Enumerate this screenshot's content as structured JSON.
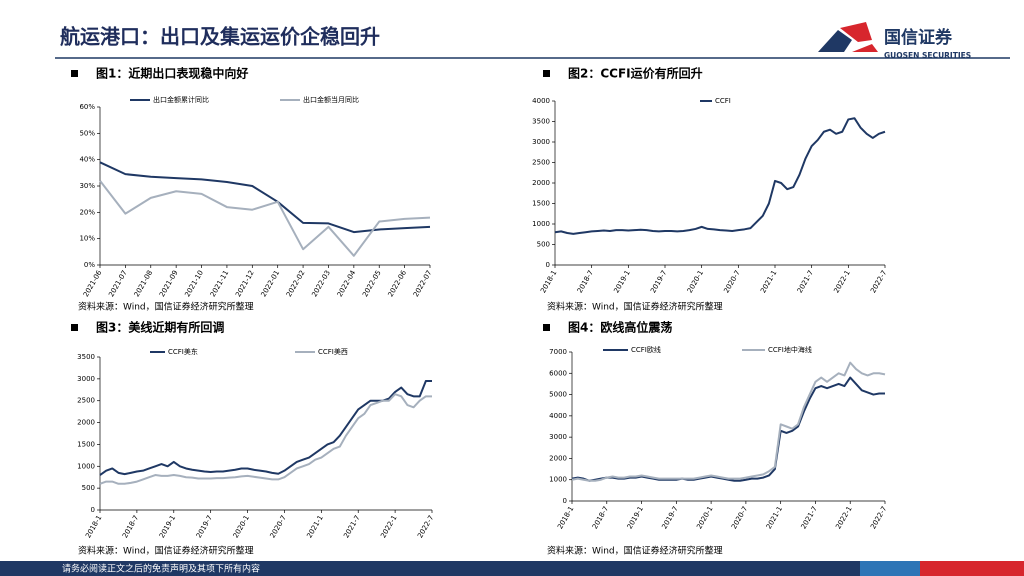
{
  "header": {
    "title": "航运港口：出口及集运运价企稳回升",
    "logo_cn": "国信证券",
    "logo_en": "GUOSEN SECURITIES"
  },
  "footer": {
    "text": "请务必阅读正文之后的免责声明及其项下所有内容"
  },
  "chart_data": [
    {
      "type": "line",
      "title": "图1：近期出口表现稳中向好",
      "source": "资料来源：Wind，国信证券经济研究所整理",
      "categories": [
        "2021-06",
        "2021-07",
        "2021-08",
        "2021-09",
        "2021-10",
        "2021-11",
        "2021-12",
        "2022-01",
        "2022-02",
        "2022-03",
        "2022-04",
        "2022-05",
        "2022-06",
        "2022-07"
      ],
      "series": [
        {
          "name": "出口金额累计同比",
          "color": "#1f3864",
          "values": [
            39,
            34.5,
            33.5,
            33,
            32.5,
            31.5,
            30,
            24,
            16,
            15.8,
            12.5,
            13.5,
            14,
            14.5
          ]
        },
        {
          "name": "出口金额当月同比",
          "color": "#a6b0bd",
          "values": [
            32,
            19.5,
            25.5,
            28,
            27,
            22,
            21,
            24,
            6,
            14.5,
            3.5,
            16.5,
            17.5,
            18
          ]
        }
      ],
      "ylim": [
        0,
        60
      ],
      "yticks": [
        {
          "value": 0,
          "label": "0%"
        },
        {
          "value": 10,
          "label": "10%"
        },
        {
          "value": 20,
          "label": "20%"
        },
        {
          "value": 30,
          "label": "30%"
        },
        {
          "value": 40,
          "label": "40%"
        },
        {
          "value": 50,
          "label": "50%"
        },
        {
          "value": 60,
          "label": "60%"
        }
      ]
    },
    {
      "type": "line",
      "title": "图2：CCFI运价有所回升",
      "source": "资料来源：Wind，国信证券经济研究所整理",
      "categories": [
        "2018-1",
        null,
        null,
        null,
        null,
        null,
        "2018-7",
        null,
        null,
        null,
        null,
        null,
        "2019-1",
        null,
        null,
        null,
        null,
        null,
        "2019-7",
        null,
        null,
        null,
        null,
        null,
        "2020-1",
        null,
        null,
        null,
        null,
        null,
        "2020-7",
        null,
        null,
        null,
        null,
        null,
        "2021-1",
        null,
        null,
        null,
        null,
        null,
        "2021-7",
        null,
        null,
        null,
        null,
        null,
        "2022-1",
        null,
        null,
        null,
        null,
        null,
        "2022-7"
      ],
      "series": [
        {
          "name": "CCFI",
          "color": "#1f3864",
          "values": [
            800,
            820,
            780,
            760,
            780,
            800,
            820,
            830,
            840,
            830,
            850,
            850,
            840,
            850,
            860,
            850,
            830,
            820,
            830,
            830,
            820,
            830,
            850,
            880,
            930,
            880,
            870,
            850,
            840,
            830,
            850,
            870,
            900,
            1050,
            1200,
            1500,
            2050,
            2000,
            1850,
            1900,
            2200,
            2600,
            2900,
            3050,
            3250,
            3300,
            3200,
            3250,
            3550,
            3580,
            3350,
            3200,
            3100,
            3200,
            3250
          ]
        }
      ],
      "ylim": [
        0,
        4000
      ],
      "yticks": [
        0,
        500,
        1000,
        1500,
        2000,
        2500,
        3000,
        3500,
        4000
      ]
    },
    {
      "type": "line",
      "title": "图3：美线近期有所回调",
      "source": "资料来源：Wind，国信证券经济研究所整理",
      "categories": [
        "2018-1",
        null,
        null,
        null,
        null,
        null,
        "2018-7",
        null,
        null,
        null,
        null,
        null,
        "2019-1",
        null,
        null,
        null,
        null,
        null,
        "2019-7",
        null,
        null,
        null,
        null,
        null,
        "2020-1",
        null,
        null,
        null,
        null,
        null,
        "2020-7",
        null,
        null,
        null,
        null,
        null,
        "2021-1",
        null,
        null,
        null,
        null,
        null,
        "2021-7",
        null,
        null,
        null,
        null,
        null,
        "2022-1",
        null,
        null,
        null,
        null,
        null,
        "2022-7"
      ],
      "series": [
        {
          "name": "CCFI美东",
          "color": "#1f3864",
          "values": [
            800,
            900,
            950,
            850,
            820,
            850,
            880,
            900,
            950,
            1000,
            1050,
            1000,
            1100,
            1000,
            950,
            920,
            900,
            880,
            870,
            880,
            880,
            900,
            920,
            950,
            950,
            920,
            900,
            880,
            850,
            830,
            900,
            1000,
            1100,
            1150,
            1200,
            1300,
            1400,
            1500,
            1550,
            1700,
            1900,
            2100,
            2300,
            2400,
            2500,
            2500,
            2500,
            2550,
            2700,
            2800,
            2650,
            2600,
            2600,
            2950,
            2950
          ]
        },
        {
          "name": "CCFI美西",
          "color": "#a6b0bd",
          "values": [
            600,
            650,
            650,
            600,
            600,
            620,
            650,
            700,
            750,
            800,
            780,
            780,
            800,
            780,
            750,
            740,
            720,
            720,
            720,
            730,
            730,
            740,
            750,
            770,
            780,
            760,
            740,
            720,
            700,
            700,
            750,
            850,
            950,
            1000,
            1050,
            1150,
            1200,
            1300,
            1400,
            1450,
            1700,
            1900,
            2100,
            2200,
            2400,
            2450,
            2500,
            2500,
            2650,
            2600,
            2400,
            2350,
            2500,
            2600,
            2600
          ]
        }
      ],
      "ylim": [
        0,
        3500
      ],
      "yticks": [
        0,
        500,
        1000,
        1500,
        2000,
        2500,
        3000,
        3500
      ]
    },
    {
      "type": "line",
      "title": "图4：欧线高位震荡",
      "source": "资料来源：Wind，国信证券经济研究所整理",
      "categories": [
        "2018-1",
        null,
        null,
        null,
        null,
        null,
        "2018-7",
        null,
        null,
        null,
        null,
        null,
        "2019-1",
        null,
        null,
        null,
        null,
        null,
        "2019-7",
        null,
        null,
        null,
        null,
        null,
        "2020-1",
        null,
        null,
        null,
        null,
        null,
        "2020-7",
        null,
        null,
        null,
        null,
        null,
        "2021-1",
        null,
        null,
        null,
        null,
        null,
        "2021-7",
        null,
        null,
        null,
        null,
        null,
        "2022-1",
        null,
        null,
        null,
        null,
        null,
        "2022-7"
      ],
      "series": [
        {
          "name": "CCFI欧线",
          "color": "#1f3864",
          "values": [
            1050,
            1100,
            1050,
            950,
            1000,
            1050,
            1100,
            1100,
            1050,
            1050,
            1100,
            1100,
            1150,
            1100,
            1050,
            1000,
            1000,
            1000,
            1000,
            1050,
            1000,
            1000,
            1050,
            1100,
            1150,
            1100,
            1050,
            1000,
            950,
            950,
            1000,
            1050,
            1050,
            1100,
            1200,
            1500,
            3300,
            3200,
            3300,
            3500,
            4200,
            4800,
            5300,
            5400,
            5300,
            5400,
            5500,
            5400,
            5800,
            5500,
            5200,
            5100,
            5000,
            5050,
            5050
          ]
        },
        {
          "name": "CCFI地中海线",
          "color": "#a6b0bd",
          "values": [
            1000,
            1050,
            1000,
            950,
            950,
            1000,
            1100,
            1150,
            1100,
            1100,
            1150,
            1150,
            1200,
            1150,
            1100,
            1050,
            1050,
            1050,
            1050,
            1050,
            1050,
            1050,
            1100,
            1150,
            1200,
            1150,
            1100,
            1050,
            1050,
            1050,
            1100,
            1150,
            1200,
            1250,
            1400,
            1600,
            3600,
            3500,
            3400,
            3600,
            4400,
            5000,
            5600,
            5800,
            5600,
            5800,
            6000,
            5900,
            6500,
            6200,
            6000,
            5900,
            6000,
            6000,
            5950
          ]
        }
      ],
      "ylim": [
        0,
        7000
      ],
      "yticks": [
        0,
        1000,
        2000,
        3000,
        4000,
        5000,
        6000,
        7000
      ]
    }
  ]
}
